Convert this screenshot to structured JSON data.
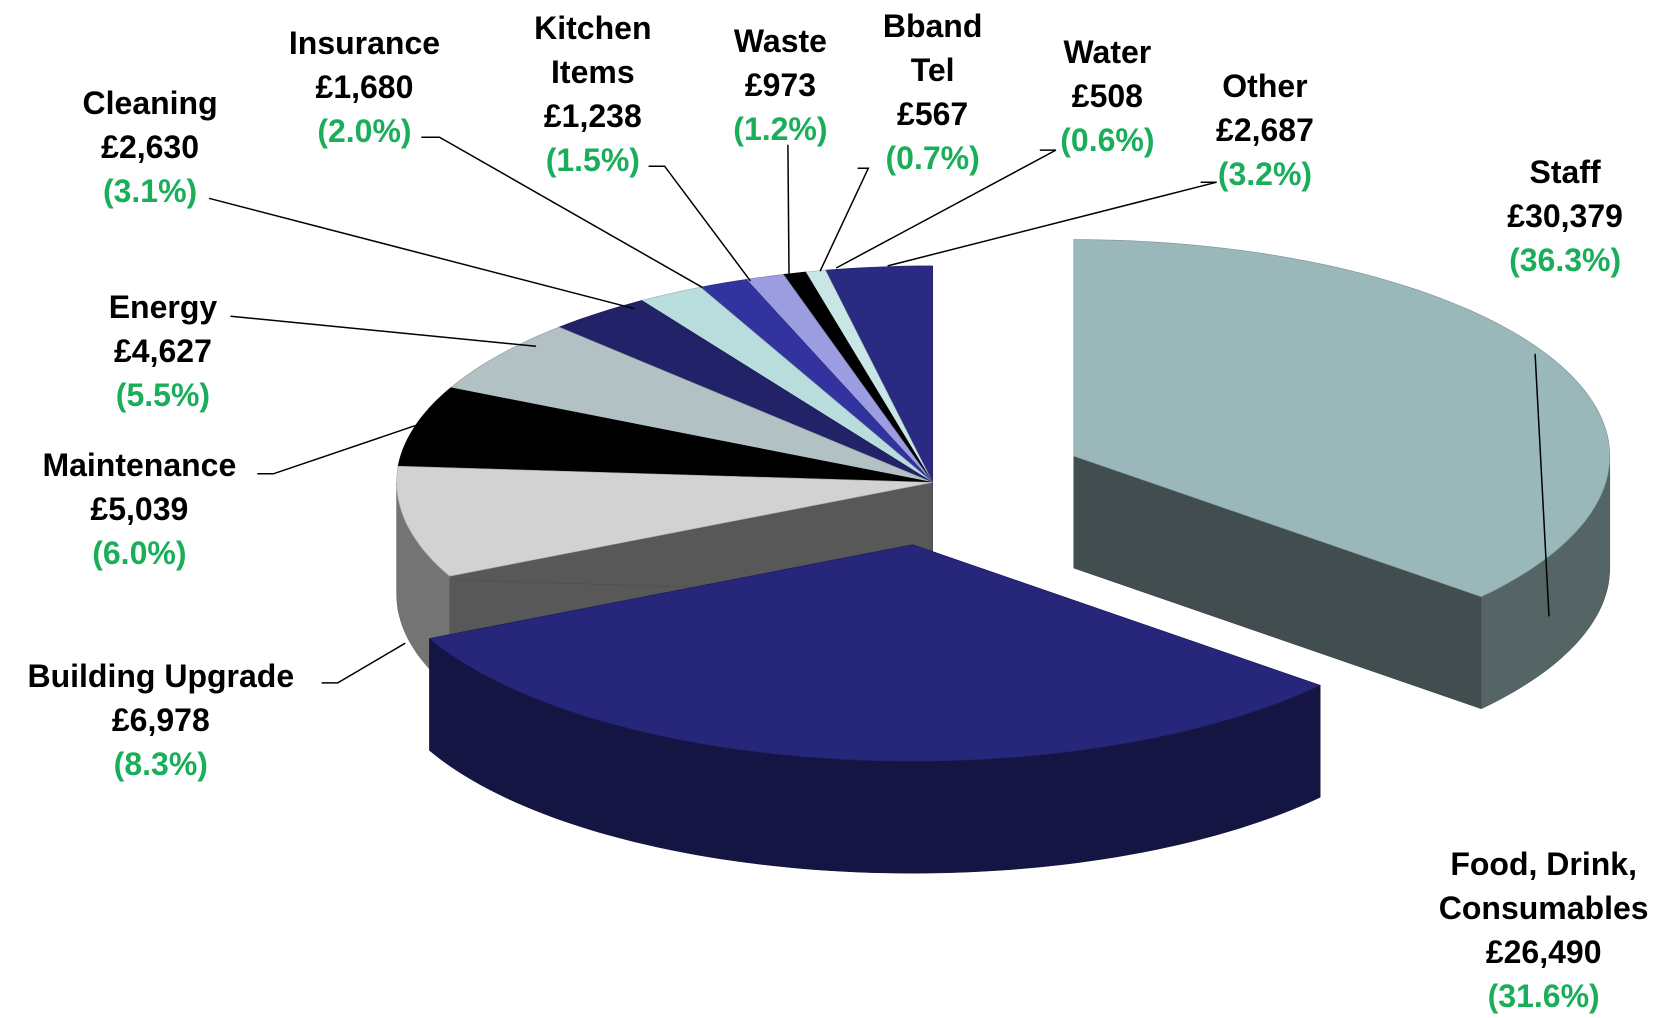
{
  "chart_data": {
    "type": "pie3d",
    "categories": [
      "Staff",
      "Food, Drink,\nConsumables",
      "Building Upgrade",
      "Maintenance",
      "Energy",
      "Cleaning",
      "Insurance",
      "Kitchen\nItems",
      "Waste",
      "Bband\nTel",
      "Water",
      "Other"
    ],
    "values": [
      30379,
      26490,
      6978,
      5039,
      4627,
      2630,
      1680,
      1238,
      973,
      567,
      508,
      2687
    ],
    "value_labels": [
      "£30,379",
      "£26,490",
      "£6,978",
      "£5,039",
      "£4,627",
      "£2,630",
      "£1,680",
      "£1,238",
      "£973",
      "£567",
      "£508",
      "£2,687"
    ],
    "percents": [
      36.3,
      31.6,
      8.3,
      6.0,
      5.5,
      3.1,
      2.0,
      1.5,
      1.2,
      0.7,
      0.6,
      3.2
    ],
    "percent_labels": [
      "(36.3%)",
      "(31.6%)",
      "(8.3%)",
      "(6.0%)",
      "(5.5%)",
      "(3.1%)",
      "(2.0%)",
      "(1.5%)",
      "(1.2%)",
      "(0.7%)",
      "(0.6%)",
      "(3.2%)"
    ],
    "colors": [
      "#9ab8b9",
      "#26267a",
      "#d2d2d2",
      "#000000",
      "#b1c1c4",
      "#222268",
      "#b9dddd",
      "#3333a0",
      "#9c9ce0",
      "#000000",
      "#c9e6e6",
      "#2a2a82"
    ],
    "exploded": [
      true,
      true,
      false,
      false,
      false,
      false,
      false,
      false,
      false,
      false,
      false,
      false
    ]
  }
}
